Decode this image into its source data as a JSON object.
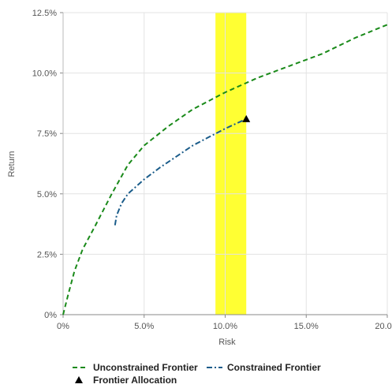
{
  "chart_data": {
    "type": "line",
    "xlabel": "Risk",
    "ylabel": "Return",
    "xlim": [
      0,
      0.2
    ],
    "ylim": [
      0,
      0.125
    ],
    "grid": true,
    "legend_position": "bottom",
    "x_ticks": [
      {
        "value": 0.0,
        "label": "0%"
      },
      {
        "value": 0.05,
        "label": "5.0%"
      },
      {
        "value": 0.1,
        "label": "10.0%"
      },
      {
        "value": 0.15,
        "label": "15.0%"
      },
      {
        "value": 0.2,
        "label": "20.0%"
      }
    ],
    "y_ticks": [
      {
        "value": 0.0,
        "label": "0%"
      },
      {
        "value": 0.025,
        "label": "2.5%"
      },
      {
        "value": 0.05,
        "label": "5.0%"
      },
      {
        "value": 0.075,
        "label": "7.5%"
      },
      {
        "value": 0.1,
        "label": "10.0%"
      },
      {
        "value": 0.125,
        "label": "12.5%"
      }
    ],
    "band": {
      "x_range": [
        0.094,
        0.113
      ],
      "color": "#ffff33"
    },
    "series": [
      {
        "name": "Unconstrained Frontier",
        "color": "#1a8a1a",
        "dash": "dashed",
        "points": [
          [
            0.0,
            0.0
          ],
          [
            0.003,
            0.008
          ],
          [
            0.007,
            0.018
          ],
          [
            0.012,
            0.027
          ],
          [
            0.02,
            0.037
          ],
          [
            0.03,
            0.05
          ],
          [
            0.04,
            0.062
          ],
          [
            0.05,
            0.07
          ],
          [
            0.065,
            0.078
          ],
          [
            0.08,
            0.085
          ],
          [
            0.1,
            0.092
          ],
          [
            0.12,
            0.098
          ],
          [
            0.14,
            0.103
          ],
          [
            0.16,
            0.108
          ],
          [
            0.18,
            0.1145
          ],
          [
            0.2,
            0.12
          ]
        ]
      },
      {
        "name": "Constrained Frontier",
        "color": "#1a5c8a",
        "dash": "dashdot",
        "points": [
          [
            0.032,
            0.037
          ],
          [
            0.033,
            0.041
          ],
          [
            0.036,
            0.046
          ],
          [
            0.04,
            0.05
          ],
          [
            0.05,
            0.056
          ],
          [
            0.06,
            0.061
          ],
          [
            0.07,
            0.0655
          ],
          [
            0.08,
            0.07
          ],
          [
            0.09,
            0.0735
          ],
          [
            0.1,
            0.077
          ],
          [
            0.113,
            0.081
          ]
        ]
      }
    ],
    "markers": [
      {
        "name": "Frontier Allocation",
        "x": 0.113,
        "y": 0.081,
        "symbol": "triangle",
        "color": "#000000"
      }
    ]
  }
}
